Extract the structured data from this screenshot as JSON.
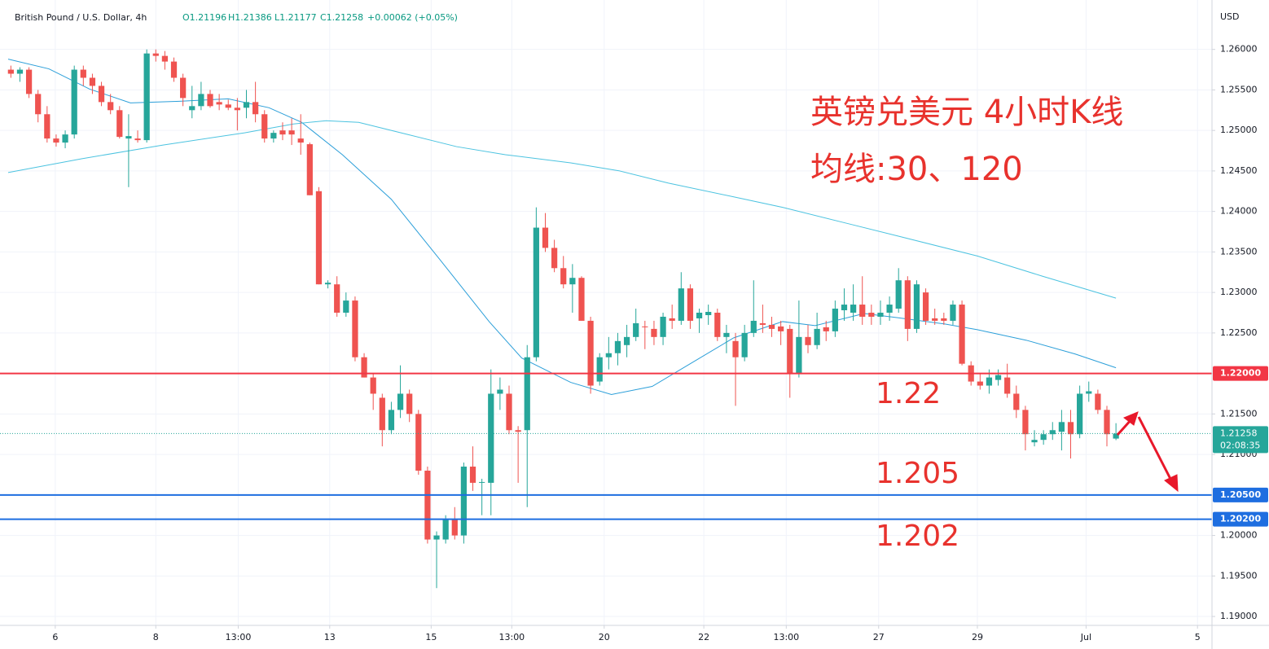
{
  "chart_data": {
    "type": "candlestick",
    "header": {
      "symbol": "British Pound / U.S. Dollar, 4h",
      "open": "O1.21196",
      "high": "H1.21386",
      "low": "L1.21177",
      "close": "C1.21258",
      "change": "+0.00062 (+0.05%)"
    },
    "currency": "USD",
    "title": "英镑兑美元 4小时K线",
    "subtitle": "均线:30、120",
    "annotations": [
      "1.22",
      "1.205",
      "1.202"
    ],
    "up_color": "#26a69a",
    "down_color": "#ef5350",
    "open": [
      1.2575,
      1.257,
      1.2575,
      1.2545,
      1.252,
      1.249,
      1.2485,
      1.2495,
      1.2575,
      1.2565,
      1.2555,
      1.2535,
      1.2525,
      1.249,
      1.249,
      1.2488,
      1.2595,
      1.2592,
      1.2585,
      1.2565,
      1.2525,
      1.253,
      1.2545,
      1.2535,
      1.2532,
      1.2528,
      1.2528,
      1.2535,
      1.252,
      1.249,
      1.25,
      1.25,
      1.249,
      1.2483,
      1.2425,
      1.231,
      1.231,
      1.2275,
      1.229,
      1.222,
      1.2195,
      1.217,
      1.213,
      1.2155,
      1.2175,
      1.215,
      1.208,
      1.1995,
      1.1995,
      1.202,
      1.2,
      1.2085,
      1.2065,
      1.2065,
      1.2175,
      1.2175,
      1.213,
      1.213,
      1.222,
      1.238,
      1.2355,
      1.233,
      1.231,
      1.2318,
      1.2265,
      1.219,
      1.222,
      1.2225,
      1.2235,
      1.2245,
      1.2258,
      1.2255,
      1.2245,
      1.2268,
      1.2265,
      1.2305,
      1.2268,
      1.2272,
      1.2275,
      1.2245,
      1.224,
      1.222,
      1.225,
      1.2262,
      1.226,
      1.2258,
      1.2255,
      1.22,
      1.2245,
      1.2235,
      1.2257,
      1.2252,
      1.2278,
      1.2275,
      1.2285,
      1.2275,
      1.227,
      1.2275,
      1.228,
      1.2315,
      1.2255,
      1.23,
      1.2268,
      1.2268,
      1.2265,
      1.2285,
      1.221,
      1.219,
      1.2185,
      1.2192,
      1.2195,
      1.2175,
      1.2155,
      1.2115,
      1.2118,
      1.2125,
      1.2128,
      1.214,
      1.2125,
      1.2175,
      1.2175,
      1.2155,
      1.21196
    ],
    "high": [
      1.258,
      1.2578,
      1.2578,
      1.255,
      1.253,
      1.2495,
      1.25,
      1.258,
      1.258,
      1.257,
      1.256,
      1.2545,
      1.253,
      1.252,
      1.25,
      1.26,
      1.26,
      1.2598,
      1.259,
      1.257,
      1.2555,
      1.256,
      1.255,
      1.2545,
      1.2538,
      1.254,
      1.255,
      1.256,
      1.2525,
      1.25,
      1.251,
      1.2515,
      1.252,
      1.2485,
      1.243,
      1.2315,
      1.232,
      1.23,
      1.2295,
      1.2225,
      1.22,
      1.2175,
      1.2165,
      1.221,
      1.218,
      1.2155,
      1.2085,
      1.2005,
      1.2025,
      1.2035,
      1.209,
      1.211,
      1.207,
      1.2205,
      1.2195,
      1.2185,
      1.2135,
      1.2235,
      1.2405,
      1.2398,
      1.2365,
      1.2345,
      1.2335,
      1.232,
      1.227,
      1.2225,
      1.2245,
      1.225,
      1.226,
      1.228,
      1.2265,
      1.2265,
      1.2275,
      1.2285,
      1.2325,
      1.231,
      1.228,
      1.2285,
      1.228,
      1.226,
      1.225,
      1.226,
      1.2315,
      1.2285,
      1.227,
      1.2265,
      1.226,
      1.229,
      1.226,
      1.2275,
      1.2265,
      1.229,
      1.2305,
      1.231,
      1.232,
      1.2285,
      1.229,
      1.2295,
      1.233,
      1.232,
      1.2315,
      1.2305,
      1.228,
      1.2275,
      1.229,
      1.229,
      1.2215,
      1.22,
      1.2205,
      1.2205,
      1.2212,
      1.2185,
      1.216,
      1.213,
      1.213,
      1.214,
      1.2155,
      1.2155,
      1.2185,
      1.219,
      1.218,
      1.216,
      1.21386
    ],
    "low": [
      1.2565,
      1.256,
      1.254,
      1.251,
      1.2485,
      1.248,
      1.2478,
      1.249,
      1.2555,
      1.2545,
      1.253,
      1.252,
      1.249,
      1.243,
      1.2485,
      1.2485,
      1.2585,
      1.2575,
      1.256,
      1.253,
      1.2515,
      1.2525,
      1.2528,
      1.2525,
      1.2525,
      1.25,
      1.2515,
      1.251,
      1.2485,
      1.2485,
      1.2488,
      1.2482,
      1.247,
      1.242,
      1.231,
      1.2305,
      1.227,
      1.227,
      1.2215,
      1.2195,
      1.2155,
      1.211,
      1.2125,
      1.2145,
      1.214,
      1.2075,
      1.199,
      1.1935,
      1.199,
      1.1995,
      1.199,
      1.2055,
      1.2025,
      1.2025,
      1.2155,
      1.2125,
      1.2065,
      1.2035,
      1.2215,
      1.235,
      1.2325,
      1.2305,
      1.2275,
      1.2265,
      1.2175,
      1.2185,
      1.2205,
      1.221,
      1.222,
      1.224,
      1.223,
      1.2235,
      1.2235,
      1.2255,
      1.226,
      1.2255,
      1.225,
      1.226,
      1.224,
      1.2225,
      1.216,
      1.2215,
      1.2245,
      1.225,
      1.2245,
      1.2235,
      1.217,
      1.2195,
      1.2225,
      1.223,
      1.224,
      1.2245,
      1.2265,
      1.2265,
      1.226,
      1.226,
      1.226,
      1.2265,
      1.2275,
      1.224,
      1.225,
      1.226,
      1.226,
      1.226,
      1.226,
      1.221,
      1.2185,
      1.218,
      1.2175,
      1.2185,
      1.217,
      1.2145,
      1.2105,
      1.211,
      1.2112,
      1.2118,
      1.2105,
      1.2095,
      1.212,
      1.2165,
      1.215,
      1.211,
      1.21177
    ],
    "close": [
      1.257,
      1.2575,
      1.2545,
      1.252,
      1.249,
      1.2485,
      1.2495,
      1.2575,
      1.2565,
      1.2555,
      1.2535,
      1.2525,
      1.2492,
      1.2493,
      1.2488,
      1.2595,
      1.2592,
      1.2585,
      1.2565,
      1.254,
      1.253,
      1.2545,
      1.253,
      1.2532,
      1.2528,
      1.2525,
      1.2535,
      1.252,
      1.249,
      1.2497,
      1.2495,
      1.2495,
      1.2485,
      1.242,
      1.231,
      1.2312,
      1.2275,
      1.229,
      1.222,
      1.2195,
      1.2175,
      1.213,
      1.2155,
      1.2175,
      1.215,
      1.208,
      1.1995,
      1.2,
      1.202,
      1.2,
      1.2085,
      1.2065,
      1.2066,
      1.2175,
      1.218,
      1.213,
      1.2128,
      1.222,
      1.238,
      1.2355,
      1.233,
      1.231,
      1.2318,
      1.2265,
      1.2185,
      1.222,
      1.2225,
      1.224,
      1.2245,
      1.2262,
      1.2257,
      1.2245,
      1.227,
      1.2265,
      1.2305,
      1.2265,
      1.2275,
      1.2276,
      1.2245,
      1.225,
      1.222,
      1.225,
      1.2265,
      1.226,
      1.2255,
      1.2252,
      1.22,
      1.2245,
      1.2235,
      1.2255,
      1.2252,
      1.228,
      1.2285,
      1.2285,
      1.227,
      1.227,
      1.2275,
      1.2285,
      1.2315,
      1.2255,
      1.231,
      1.2265,
      1.2265,
      1.2265,
      1.2285,
      1.2212,
      1.219,
      1.2185,
      1.2195,
      1.2198,
      1.2175,
      1.2155,
      1.2125,
      1.2118,
      1.2125,
      1.213,
      1.214,
      1.2125,
      1.2175,
      1.2178,
      1.2155,
      1.2125,
      1.21258
    ],
    "ma": [
      {
        "color": "#2c9fd9",
        "x": [
          -0.3,
          4.2,
          8.7,
          13.2,
          18.6,
          24.0,
          28.5,
          32.1,
          36.6,
          42.0,
          47.4,
          52.8,
          56.4,
          61.8,
          66.3,
          70.8,
          75.3,
          79.8,
          85.2,
          88.8,
          94.2,
          97.8,
          103.1,
          106.7,
          112.1,
          117.5,
          122
        ],
        "values": [
          1.2588,
          1.2576,
          1.2551,
          1.2534,
          1.2536,
          1.2539,
          1.2528,
          1.251,
          1.247,
          1.2415,
          1.234,
          1.2264,
          1.2219,
          1.2189,
          1.2174,
          1.2184,
          1.2214,
          1.2244,
          1.2264,
          1.2259,
          1.2274,
          1.2269,
          1.2261,
          1.2254,
          1.2241,
          1.2224,
          1.2207
        ]
      },
      {
        "color": "#4cc3e0",
        "x": [
          -0.3,
          7.8,
          16.8,
          25.8,
          31.2,
          34.8,
          38.4,
          43.8,
          49.2,
          54.6,
          61.8,
          67.2,
          72.6,
          79.8,
          85.2,
          92.4,
          97.8,
          106.7,
          113.9,
          122
        ],
        "values": [
          1.2448,
          1.2465,
          1.2482,
          1.2497,
          1.2508,
          1.2512,
          1.251,
          1.2495,
          1.248,
          1.247,
          1.246,
          1.245,
          1.2435,
          1.2418,
          1.2405,
          1.2385,
          1.237,
          1.2345,
          1.232,
          1.2293
        ]
      }
    ],
    "levels": [
      {
        "value": 1.22,
        "label": "1.22000",
        "color": "#f23645"
      },
      {
        "value": 1.205,
        "label": "1.20500",
        "color": "#1e6ee0"
      },
      {
        "value": 1.202,
        "label": "1.20200",
        "color": "#1e6ee0"
      }
    ],
    "last_price": {
      "value": 1.21258,
      "label": "1.21258",
      "countdown": "02:08:35",
      "color": "#26a69a"
    },
    "xlim": [
      -1.2,
      132.6
    ],
    "ylim": [
      1.1889,
      1.2661
    ],
    "xticks": [
      {
        "value": 4.9,
        "label": "6"
      },
      {
        "value": 16.0,
        "label": "8"
      },
      {
        "value": 25.1,
        "label": "13:00"
      },
      {
        "value": 35.2,
        "label": "13"
      },
      {
        "value": 46.4,
        "label": "15"
      },
      {
        "value": 55.3,
        "label": "13:00"
      },
      {
        "value": 65.5,
        "label": "20"
      },
      {
        "value": 76.5,
        "label": "22"
      },
      {
        "value": 85.6,
        "label": "13:00"
      },
      {
        "value": 95.8,
        "label": "27"
      },
      {
        "value": 106.7,
        "label": "29"
      },
      {
        "value": 118.7,
        "label": "Jul"
      },
      {
        "value": 131.0,
        "label": "5"
      }
    ],
    "yticks": [
      {
        "value": 1.19,
        "label": "1.19000"
      },
      {
        "value": 1.195,
        "label": "1.19500"
      },
      {
        "value": 1.2,
        "label": "1.20000"
      },
      {
        "value": 1.205,
        "label": "1.20500"
      },
      {
        "value": 1.21,
        "label": "1.21000"
      },
      {
        "value": 1.215,
        "label": "1.21500"
      },
      {
        "value": 1.22,
        "label": "1.22000"
      },
      {
        "value": 1.225,
        "label": "1.22500"
      },
      {
        "value": 1.23,
        "label": "1.23000"
      },
      {
        "value": 1.235,
        "label": "1.23500"
      },
      {
        "value": 1.24,
        "label": "1.24000"
      },
      {
        "value": 1.245,
        "label": "1.24500"
      },
      {
        "value": 1.25,
        "label": "1.25000"
      },
      {
        "value": 1.255,
        "label": "1.25500"
      },
      {
        "value": 1.26,
        "label": "1.26000"
      }
    ]
  }
}
